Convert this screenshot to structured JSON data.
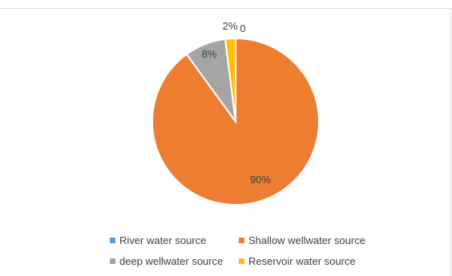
{
  "chart_data": {
    "type": "pie",
    "title": "",
    "categories": [
      "River water source",
      "Shallow wellwater source",
      "deep wellwater source",
      "Reservoir water source"
    ],
    "values": [
      0,
      90,
      8,
      2
    ],
    "data_labels": [
      "0",
      "90%",
      "8%",
      "2%"
    ],
    "colors": [
      "#5b9bd5",
      "#ed7d31",
      "#a5a5a5",
      "#ffc000"
    ],
    "start_angle_deg": 0,
    "direction": "clockwise",
    "legend_position": "bottom"
  }
}
